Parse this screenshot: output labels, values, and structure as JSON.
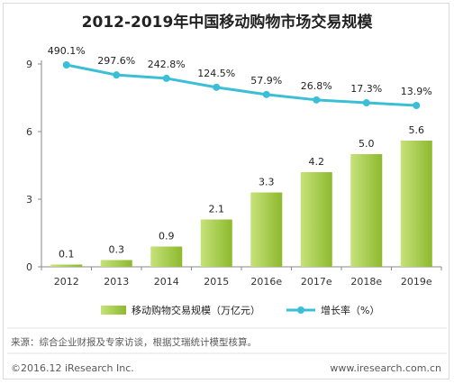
{
  "chart_data": {
    "type": "bar",
    "title": "2012-2019年中国移动购物市场交易规模",
    "categories": [
      "2012",
      "2013",
      "2014",
      "2015",
      "2016e",
      "2017e",
      "2018e",
      "2019e"
    ],
    "series": [
      {
        "name": "移动购物交易规模（万亿元）",
        "type": "bar",
        "axis": "left",
        "values": [
          0.1,
          0.3,
          0.9,
          2.1,
          3.3,
          4.2,
          5.0,
          5.6
        ],
        "labels": [
          "0.1",
          "0.3",
          "0.9",
          "2.1",
          "3.3",
          "4.2",
          "5.0",
          "5.6"
        ]
      },
      {
        "name": "增长率（%）",
        "type": "line",
        "axis": "right",
        "values": [
          490.1,
          297.6,
          242.8,
          124.5,
          57.9,
          26.8,
          17.3,
          13.9
        ],
        "labels": [
          "490.1%",
          "297.6%",
          "242.8%",
          "124.5%",
          "57.9%",
          "26.8%",
          "17.3%",
          "13.9%"
        ]
      }
    ],
    "yticks": [
      "0",
      "3",
      "6",
      "9"
    ],
    "ylim": [
      0,
      9
    ],
    "grid": false,
    "legend_position": "bottom",
    "colors": {
      "bar_light": "#c6e27a",
      "bar_dark": "#8db92e",
      "line": "#3bbfd6",
      "axis": "#888888"
    }
  },
  "footer": {
    "source": "来源：综合企业财报及专家访谈，根据艾瑞统计模型核算。",
    "copyright": "©2016.12 iResearch Inc.",
    "website": "www.iresearch.com.cn"
  }
}
